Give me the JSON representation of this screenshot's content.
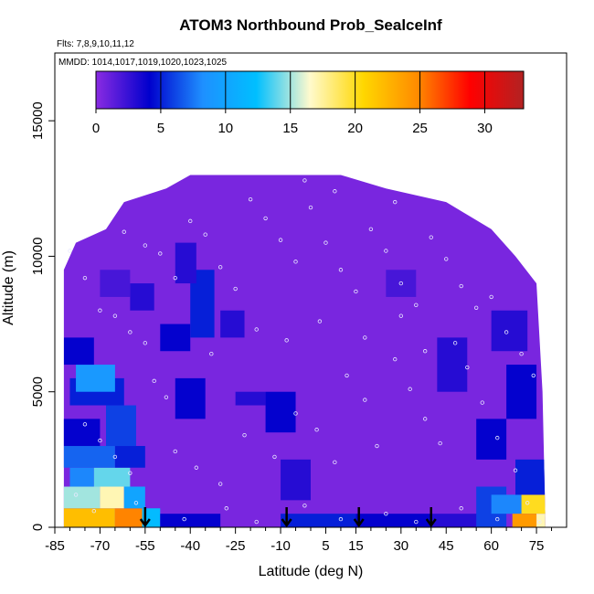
{
  "chart_data": {
    "type": "heatmap",
    "title": "ATOM3 Northbound Prob_SealceInf",
    "flights_note": "Flts: 7,8,9,10,11,12",
    "dates_note": "MMDD: 1014,1017,1019,1020,1023,1025",
    "xlabel": "Latitude (deg N)",
    "ylabel": "Altitude (m)",
    "xlim": [
      -85,
      85
    ],
    "ylim": [
      0,
      17500
    ],
    "x_ticks": [
      "-85",
      "-70",
      "-55",
      "-40",
      "-25",
      "-10",
      "5",
      "15",
      "30",
      "45",
      "60",
      "75"
    ],
    "x_tick_values": [
      -85,
      -70,
      -55,
      -40,
      -25,
      -10,
      5,
      15,
      30,
      45,
      60,
      75
    ],
    "y_ticks": [
      "0",
      "5000",
      "10000",
      "15000"
    ],
    "y_tick_values": [
      0,
      5000,
      10000,
      15000
    ],
    "colorbar": {
      "ticks": [
        "0",
        "5",
        "10",
        "15",
        "20",
        "25",
        "30"
      ],
      "range": [
        0,
        33
      ],
      "colors": [
        "#8a2be2",
        "#0000cd",
        "#1e90ff",
        "#00bfff",
        "#fffacd",
        "#ffd700",
        "#ff8c00",
        "#ff0000",
        "#b22222"
      ]
    },
    "background_value": 0.5,
    "envelope_tops": [
      {
        "lat": -82,
        "alt": 9500
      },
      {
        "lat": -78,
        "alt": 10500
      },
      {
        "lat": -68,
        "alt": 11000
      },
      {
        "lat": -62,
        "alt": 12000
      },
      {
        "lat": -48,
        "alt": 12500
      },
      {
        "lat": -40,
        "alt": 13000
      },
      {
        "lat": -23,
        "alt": 13000
      },
      {
        "lat": 10,
        "alt": 13000
      },
      {
        "lat": 25,
        "alt": 12500
      },
      {
        "lat": 45,
        "alt": 12000
      },
      {
        "lat": 60,
        "alt": 11000
      },
      {
        "lat": 68,
        "alt": 10000
      },
      {
        "lat": 75,
        "alt": 9000
      },
      {
        "lat": 77,
        "alt": 5000
      },
      {
        "lat": 78,
        "alt": 0
      }
    ],
    "cells": [
      {
        "lat0": -83,
        "lat1": -65,
        "alt0": 0,
        "alt1": 700,
        "v": 22
      },
      {
        "lat0": -65,
        "lat1": -56,
        "alt0": 0,
        "alt1": 700,
        "v": 25
      },
      {
        "lat0": -56,
        "lat1": -50,
        "alt0": 0,
        "alt1": 700,
        "v": 12
      },
      {
        "lat0": -83,
        "lat1": -70,
        "alt0": 700,
        "alt1": 1500,
        "v": 15
      },
      {
        "lat0": -70,
        "lat1": -62,
        "alt0": 700,
        "alt1": 1500,
        "v": 17
      },
      {
        "lat0": -62,
        "lat1": -55,
        "alt0": 700,
        "alt1": 1500,
        "v": 10
      },
      {
        "lat0": -80,
        "lat1": -72,
        "alt0": 1500,
        "alt1": 2200,
        "v": 8
      },
      {
        "lat0": -72,
        "lat1": -60,
        "alt0": 1500,
        "alt1": 2200,
        "v": 14
      },
      {
        "lat0": -83,
        "lat1": -65,
        "alt0": 2200,
        "alt1": 3000,
        "v": 7
      },
      {
        "lat0": -65,
        "lat1": -55,
        "alt0": 2200,
        "alt1": 3000,
        "v": 5
      },
      {
        "lat0": -83,
        "lat1": -70,
        "alt0": 3000,
        "alt1": 4000,
        "v": 4
      },
      {
        "lat0": -68,
        "lat1": -58,
        "alt0": 3000,
        "alt1": 4500,
        "v": 6
      },
      {
        "lat0": -80,
        "lat1": -62,
        "alt0": 4500,
        "alt1": 5500,
        "v": 5
      },
      {
        "lat0": -78,
        "lat1": -65,
        "alt0": 5000,
        "alt1": 6000,
        "v": 9
      },
      {
        "lat0": -82,
        "lat1": -72,
        "alt0": 6000,
        "alt1": 7000,
        "v": 4
      },
      {
        "lat0": -45,
        "lat1": -35,
        "alt0": 4000,
        "alt1": 5500,
        "v": 4
      },
      {
        "lat0": -50,
        "lat1": -40,
        "alt0": 6500,
        "alt1": 7500,
        "v": 4
      },
      {
        "lat0": -40,
        "lat1": -32,
        "alt0": 7000,
        "alt1": 9500,
        "v": 5
      },
      {
        "lat0": -45,
        "lat1": -38,
        "alt0": 9000,
        "alt1": 10500,
        "v": 3
      },
      {
        "lat0": -60,
        "lat1": -52,
        "alt0": 8000,
        "alt1": 9000,
        "v": 3
      },
      {
        "lat0": -70,
        "lat1": -60,
        "alt0": 8500,
        "alt1": 9500,
        "v": 2
      },
      {
        "lat0": -30,
        "lat1": -22,
        "alt0": 7000,
        "alt1": 8000,
        "v": 3
      },
      {
        "lat0": -25,
        "lat1": -15,
        "alt0": 4500,
        "alt1": 5000,
        "v": 3
      },
      {
        "lat0": -15,
        "lat1": -5,
        "alt0": 3500,
        "alt1": 5000,
        "v": 4
      },
      {
        "lat0": -10,
        "lat1": 0,
        "alt0": 1000,
        "alt1": 2500,
        "v": 3
      },
      {
        "lat0": -50,
        "lat1": -30,
        "alt0": 0,
        "alt1": 500,
        "v": 4
      },
      {
        "lat0": -10,
        "lat1": 15,
        "alt0": 0,
        "alt1": 500,
        "v": 5
      },
      {
        "lat0": 15,
        "lat1": 40,
        "alt0": 0,
        "alt1": 500,
        "v": 4
      },
      {
        "lat0": 40,
        "lat1": 60,
        "alt0": 0,
        "alt1": 500,
        "v": 3
      },
      {
        "lat0": 55,
        "lat1": 65,
        "alt0": 0,
        "alt1": 1500,
        "v": 6
      },
      {
        "lat0": 60,
        "lat1": 70,
        "alt0": 500,
        "alt1": 1200,
        "v": 8
      },
      {
        "lat0": 70,
        "lat1": 78,
        "alt0": 500,
        "alt1": 1200,
        "v": 20
      },
      {
        "lat0": 67,
        "lat1": 75,
        "alt0": 0,
        "alt1": 500,
        "v": 24
      },
      {
        "lat0": 75,
        "lat1": 78,
        "alt0": 0,
        "alt1": 500,
        "v": 17
      },
      {
        "lat0": 68,
        "lat1": 78,
        "alt0": 1200,
        "alt1": 2500,
        "v": 5
      },
      {
        "lat0": 55,
        "lat1": 65,
        "alt0": 2500,
        "alt1": 4000,
        "v": 4
      },
      {
        "lat0": 42,
        "lat1": 52,
        "alt0": 5000,
        "alt1": 7000,
        "v": 3
      },
      {
        "lat0": 60,
        "lat1": 72,
        "alt0": 6500,
        "alt1": 8000,
        "v": 3
      },
      {
        "lat0": 25,
        "lat1": 35,
        "alt0": 8500,
        "alt1": 9500,
        "v": 2
      },
      {
        "lat0": 65,
        "lat1": 75,
        "alt0": 4000,
        "alt1": 6000,
        "v": 4
      }
    ],
    "markers_lat": [
      -55,
      -8,
      16,
      40
    ],
    "observation_points": [
      {
        "lat": -80,
        "alt": 10200
      },
      {
        "lat": -75,
        "alt": 9200
      },
      {
        "lat": -70,
        "alt": 8000
      },
      {
        "lat": -65,
        "alt": 7800
      },
      {
        "lat": -60,
        "alt": 7200
      },
      {
        "lat": -55,
        "alt": 6800
      },
      {
        "lat": -52,
        "alt": 5400
      },
      {
        "lat": -48,
        "alt": 4800
      },
      {
        "lat": -62,
        "alt": 10900
      },
      {
        "lat": -55,
        "alt": 10400
      },
      {
        "lat": -50,
        "alt": 10100
      },
      {
        "lat": -45,
        "alt": 9200
      },
      {
        "lat": -40,
        "alt": 11300
      },
      {
        "lat": -35,
        "alt": 10800
      },
      {
        "lat": -30,
        "alt": 9600
      },
      {
        "lat": -25,
        "alt": 8800
      },
      {
        "lat": -20,
        "alt": 12100
      },
      {
        "lat": -15,
        "alt": 11400
      },
      {
        "lat": -10,
        "alt": 10600
      },
      {
        "lat": -5,
        "alt": 9800
      },
      {
        "lat": 0,
        "alt": 11800
      },
      {
        "lat": 5,
        "alt": 10500
      },
      {
        "lat": 10,
        "alt": 9500
      },
      {
        "lat": 15,
        "alt": 8700
      },
      {
        "lat": 20,
        "alt": 11000
      },
      {
        "lat": 25,
        "alt": 10200
      },
      {
        "lat": 30,
        "alt": 9000
      },
      {
        "lat": 35,
        "alt": 8200
      },
      {
        "lat": 40,
        "alt": 10700
      },
      {
        "lat": 45,
        "alt": 9900
      },
      {
        "lat": 50,
        "alt": 8900
      },
      {
        "lat": 55,
        "alt": 8100
      },
      {
        "lat": 60,
        "alt": 8500
      },
      {
        "lat": 65,
        "alt": 7200
      },
      {
        "lat": 70,
        "alt": 6400
      },
      {
        "lat": 74,
        "alt": 5600
      },
      {
        "lat": -75,
        "alt": 3800
      },
      {
        "lat": -70,
        "alt": 3200
      },
      {
        "lat": -65,
        "alt": 2600
      },
      {
        "lat": -60,
        "alt": 2000
      },
      {
        "lat": -45,
        "alt": 2800
      },
      {
        "lat": -38,
        "alt": 2200
      },
      {
        "lat": -30,
        "alt": 1600
      },
      {
        "lat": -22,
        "alt": 3400
      },
      {
        "lat": -12,
        "alt": 2600
      },
      {
        "lat": -5,
        "alt": 4200
      },
      {
        "lat": 2,
        "alt": 3600
      },
      {
        "lat": 8,
        "alt": 2400
      },
      {
        "lat": 12,
        "alt": 5600
      },
      {
        "lat": 18,
        "alt": 4700
      },
      {
        "lat": 22,
        "alt": 3000
      },
      {
        "lat": 28,
        "alt": 6200
      },
      {
        "lat": 33,
        "alt": 5100
      },
      {
        "lat": 38,
        "alt": 4000
      },
      {
        "lat": 43,
        "alt": 3100
      },
      {
        "lat": 48,
        "alt": 6800
      },
      {
        "lat": 52,
        "alt": 5900
      },
      {
        "lat": 57,
        "alt": 4600
      },
      {
        "lat": 62,
        "alt": 3300
      },
      {
        "lat": 68,
        "alt": 2100
      },
      {
        "lat": -78,
        "alt": 1200
      },
      {
        "lat": -72,
        "alt": 600
      },
      {
        "lat": -58,
        "alt": 900
      },
      {
        "lat": -42,
        "alt": 300
      },
      {
        "lat": -28,
        "alt": 700
      },
      {
        "lat": -18,
        "alt": 200
      },
      {
        "lat": -2,
        "alt": 800
      },
      {
        "lat": 10,
        "alt": 300
      },
      {
        "lat": 25,
        "alt": 500
      },
      {
        "lat": 35,
        "alt": 200
      },
      {
        "lat": 50,
        "alt": 700
      },
      {
        "lat": 62,
        "alt": 300
      },
      {
        "lat": 72,
        "alt": 900
      },
      {
        "lat": 76,
        "alt": 200
      },
      {
        "lat": -33,
        "alt": 6400
      },
      {
        "lat": -18,
        "alt": 7300
      },
      {
        "lat": -8,
        "alt": 6900
      },
      {
        "lat": 3,
        "alt": 7600
      },
      {
        "lat": 18,
        "alt": 7000
      },
      {
        "lat": 30,
        "alt": 7800
      },
      {
        "lat": 38,
        "alt": 6500
      },
      {
        "lat": 8,
        "alt": 12400
      },
      {
        "lat": -2,
        "alt": 12800
      },
      {
        "lat": 28,
        "alt": 12000
      }
    ]
  }
}
